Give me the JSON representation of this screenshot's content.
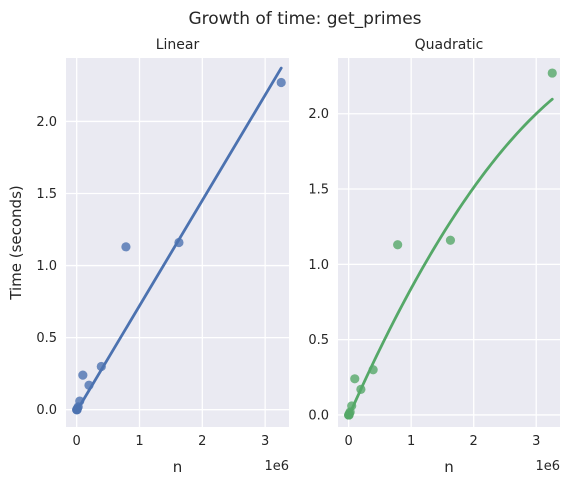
{
  "figure": {
    "title": "Growth of time: get_primes"
  },
  "chart_data": [
    {
      "type": "scatter",
      "title": "Linear",
      "xlabel": "n",
      "ylabel": "Time (seconds)",
      "x_offset_label": "1e6",
      "xlim": [
        -0.17,
        3.38
      ],
      "ylim": [
        -0.12,
        2.44
      ],
      "xticks": [
        0,
        1,
        2,
        3
      ],
      "yticks": [
        0.0,
        0.5,
        1.0,
        1.5,
        2.0
      ],
      "ytick_labels": [
        "0.0",
        "0.5",
        "1.0",
        "1.5",
        "2.0"
      ],
      "grid": true,
      "color": "#4c72b0",
      "points": {
        "x": [
          0.0,
          0.0015,
          0.0031,
          0.0061,
          0.0122,
          0.0244,
          0.049,
          0.098,
          0.196,
          0.392,
          0.784,
          1.628,
          3.256
        ],
        "y": [
          0.0,
          0.0,
          0.0,
          0.0,
          0.01,
          0.02,
          0.06,
          0.24,
          0.17,
          0.3,
          1.13,
          1.16,
          2.27
        ]
      },
      "fit": {
        "kind": "linear",
        "x": [
          0.0,
          3.256
        ],
        "y": [
          -0.01,
          2.37
        ]
      }
    },
    {
      "type": "scatter",
      "title": "Quadratic",
      "xlabel": "n",
      "ylabel": "",
      "x_offset_label": "1e6",
      "xlim": [
        -0.17,
        3.38
      ],
      "ylim": [
        -0.08,
        2.37
      ],
      "xticks": [
        0,
        1,
        2,
        3
      ],
      "yticks": [
        0.0,
        0.5,
        1.0,
        1.5,
        2.0
      ],
      "ytick_labels": [
        "0.0",
        "0.5",
        "1.0",
        "1.5",
        "2.0"
      ],
      "grid": true,
      "color": "#55a868",
      "points": {
        "x": [
          0.0,
          0.0015,
          0.0031,
          0.0061,
          0.0122,
          0.0244,
          0.049,
          0.098,
          0.196,
          0.392,
          0.784,
          1.628,
          3.256
        ],
        "y": [
          0.0,
          0.0,
          0.0,
          0.0,
          0.01,
          0.02,
          0.06,
          0.24,
          0.17,
          0.3,
          1.13,
          1.16,
          2.27
        ]
      },
      "fit": {
        "kind": "quadratic",
        "x_range": [
          0.0,
          3.256
        ],
        "coef": [
          -0.09,
          0.94,
          -0.01
        ]
      }
    }
  ]
}
